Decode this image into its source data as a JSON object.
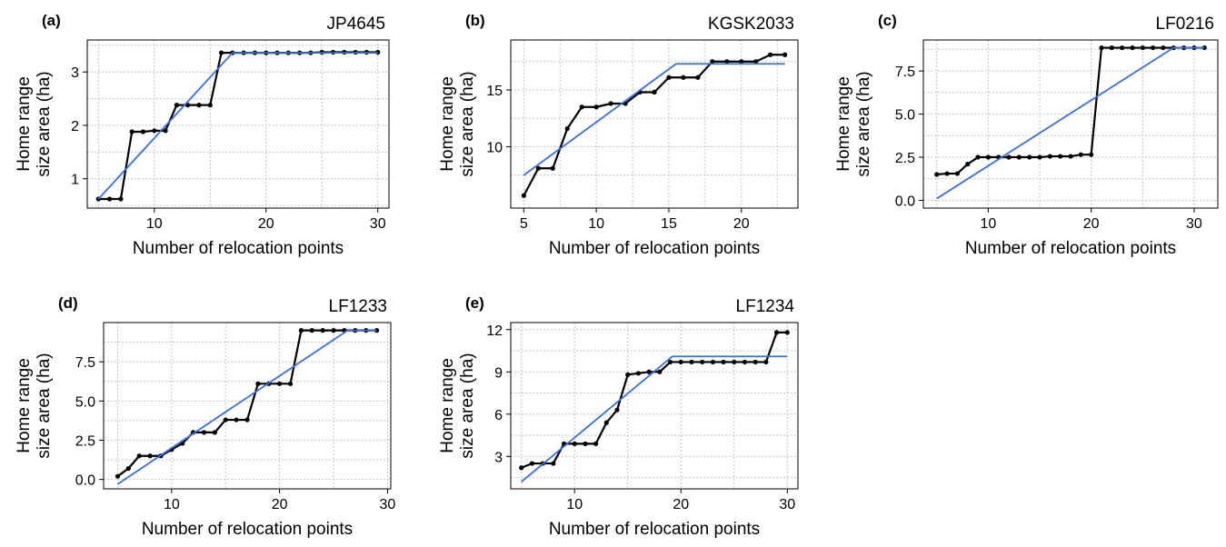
{
  "chart_data": [
    {
      "type": "line",
      "panel": "(a)",
      "title": "JP4645",
      "xlabel": "Number of relocation points",
      "ylabel": [
        "Home range",
        "size area (ha)"
      ],
      "xlim": [
        4,
        31
      ],
      "ylim": [
        0.45,
        3.6
      ],
      "xticks": [
        10,
        20,
        30
      ],
      "yticks": [
        1,
        2,
        3
      ],
      "grid": true,
      "series": [
        {
          "color": "#000000",
          "x": [
            5,
            6,
            7,
            8,
            9,
            10,
            11,
            12,
            13,
            14,
            15,
            16,
            17,
            18,
            19,
            20,
            21,
            22,
            23,
            24,
            25,
            26,
            27,
            28,
            29,
            30
          ],
          "y": [
            0.62,
            0.62,
            0.62,
            1.88,
            1.88,
            1.9,
            1.9,
            2.38,
            2.38,
            2.38,
            2.38,
            3.36,
            3.36,
            3.36,
            3.36,
            3.36,
            3.36,
            3.36,
            3.36,
            3.36,
            3.37,
            3.37,
            3.37,
            3.37,
            3.37,
            3.37
          ]
        },
        {
          "color": "#3b6fe0",
          "x": [
            5,
            17,
            30
          ],
          "y": [
            0.62,
            3.36,
            3.36
          ]
        }
      ]
    },
    {
      "type": "line",
      "panel": "(b)",
      "title": "KGSK2033",
      "xlabel": "Number of relocation points",
      "ylabel": [
        "Home range",
        "size area (ha)"
      ],
      "xlim": [
        4.1,
        23.9
      ],
      "ylim": [
        4.6,
        19.4
      ],
      "xticks": [
        5,
        10,
        15,
        20
      ],
      "yticks": [
        10,
        15
      ],
      "grid": true,
      "series": [
        {
          "color": "#000000",
          "x": [
            5,
            6,
            7,
            8,
            9,
            10,
            11,
            12,
            13,
            14,
            15,
            16,
            17,
            18,
            19,
            20,
            21,
            22,
            23
          ],
          "y": [
            5.7,
            8.1,
            8.1,
            11.6,
            13.5,
            13.5,
            13.8,
            13.8,
            14.8,
            14.8,
            16.1,
            16.1,
            16.1,
            17.5,
            17.5,
            17.5,
            17.5,
            18.1,
            18.1
          ]
        },
        {
          "color": "#3b6fe0",
          "x": [
            5,
            15.5,
            23
          ],
          "y": [
            7.5,
            17.3,
            17.3
          ]
        }
      ]
    },
    {
      "type": "line",
      "panel": "(c)",
      "title": "LF0216",
      "xlabel": "Number of relocation points",
      "ylabel": [
        "Home range",
        "size area (ha)"
      ],
      "xlim": [
        3.7,
        32.3
      ],
      "ylim": [
        -0.45,
        9.3
      ],
      "xticks": [
        10,
        20,
        30
      ],
      "yticks": [
        0.0,
        2.5,
        5.0,
        7.5
      ],
      "ytick_labels": [
        "0.0",
        "2.5",
        "5.0",
        "7.5"
      ],
      "grid": true,
      "series": [
        {
          "color": "#000000",
          "x": [
            5,
            6,
            7,
            8,
            9,
            10,
            11,
            12,
            13,
            14,
            15,
            16,
            17,
            18,
            19,
            20,
            21,
            22,
            23,
            24,
            25,
            26,
            27,
            28,
            29,
            30,
            31
          ],
          "y": [
            1.5,
            1.55,
            1.55,
            2.1,
            2.5,
            2.5,
            2.5,
            2.5,
            2.5,
            2.5,
            2.5,
            2.55,
            2.55,
            2.55,
            2.65,
            2.65,
            8.85,
            8.85,
            8.85,
            8.85,
            8.85,
            8.85,
            8.85,
            8.85,
            8.85,
            8.85,
            8.85
          ]
        },
        {
          "color": "#3b6fe0",
          "x": [
            5,
            28,
            31
          ],
          "y": [
            0.1,
            8.85,
            8.85
          ]
        }
      ]
    },
    {
      "type": "line",
      "panel": "(d)",
      "title": "LF1233",
      "xlabel": "Number of relocation points",
      "ylabel": [
        "Home range",
        "size area (ha)"
      ],
      "xlim": [
        3.7,
        30.3
      ],
      "ylim": [
        -0.6,
        10.0
      ],
      "xticks": [
        10,
        20,
        30
      ],
      "yticks": [
        0.0,
        2.5,
        5.0,
        7.5
      ],
      "ytick_labels": [
        "0.0",
        "2.5",
        "5.0",
        "7.5"
      ],
      "grid": true,
      "series": [
        {
          "color": "#000000",
          "x": [
            5,
            6,
            7,
            8,
            9,
            10,
            11,
            12,
            13,
            14,
            15,
            16,
            17,
            18,
            19,
            20,
            21,
            22,
            23,
            24,
            25,
            26,
            27,
            28,
            29
          ],
          "y": [
            0.2,
            0.7,
            1.5,
            1.5,
            1.5,
            1.9,
            2.3,
            3.0,
            3.0,
            3.0,
            3.8,
            3.8,
            3.8,
            6.1,
            6.1,
            6.1,
            6.1,
            9.5,
            9.5,
            9.5,
            9.5,
            9.5,
            9.5,
            9.5,
            9.5
          ]
        },
        {
          "color": "#3b6fe0",
          "x": [
            5,
            26.3,
            29
          ],
          "y": [
            -0.3,
            9.5,
            9.5
          ]
        }
      ]
    },
    {
      "type": "line",
      "panel": "(e)",
      "title": "LF1234",
      "xlabel": "Number of relocation points",
      "ylabel": [
        "Home range",
        "size area (ha)"
      ],
      "xlim": [
        4,
        31
      ],
      "ylim": [
        0.7,
        12.5
      ],
      "xticks": [
        10,
        20,
        30
      ],
      "yticks": [
        3,
        6,
        9,
        12
      ],
      "grid": true,
      "series": [
        {
          "color": "#000000",
          "x": [
            5,
            6,
            7,
            8,
            9,
            10,
            11,
            12,
            13,
            14,
            15,
            16,
            17,
            18,
            19,
            20,
            21,
            22,
            23,
            24,
            25,
            26,
            27,
            28,
            29,
            30
          ],
          "y": [
            2.2,
            2.5,
            2.5,
            2.5,
            3.9,
            3.9,
            3.9,
            3.9,
            5.4,
            6.3,
            8.8,
            8.9,
            9.0,
            9.0,
            9.7,
            9.7,
            9.7,
            9.7,
            9.7,
            9.7,
            9.7,
            9.7,
            9.7,
            9.7,
            11.8,
            11.8
          ]
        },
        {
          "color": "#3b6fe0",
          "x": [
            5,
            19.2,
            30
          ],
          "y": [
            1.2,
            10.1,
            10.1
          ]
        }
      ]
    }
  ]
}
